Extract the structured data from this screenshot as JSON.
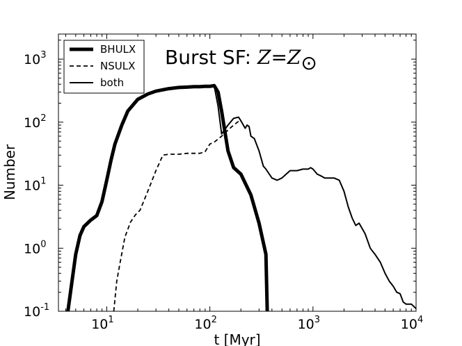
{
  "chart_data": {
    "type": "line",
    "title_prefix": "Burst SF: ",
    "title_math": "Z=Z",
    "title_math_symbol": "⊙",
    "xlabel": "t [Myr]",
    "ylabel": "Number",
    "xscale": "log",
    "yscale": "log",
    "xlim": [
      3.4,
      10000
    ],
    "ylim": [
      0.1,
      2500
    ],
    "grid": false,
    "legend_placement": "top-left",
    "x_ticks": [
      {
        "value": 10,
        "base": "10",
        "exp": "1"
      },
      {
        "value": 100,
        "base": "10",
        "exp": "2"
      },
      {
        "value": 1000,
        "base": "10",
        "exp": "3"
      },
      {
        "value": 10000,
        "base": "10",
        "exp": "4"
      }
    ],
    "y_ticks": [
      {
        "value": 0.1,
        "base": "10",
        "exp": "-1"
      },
      {
        "value": 1,
        "base": "10",
        "exp": "0"
      },
      {
        "value": 10,
        "base": "10",
        "exp": "1"
      },
      {
        "value": 100,
        "base": "10",
        "exp": "2"
      },
      {
        "value": 1000,
        "base": "10",
        "exp": "3"
      }
    ],
    "series": [
      {
        "name": "BHULX",
        "style": "thick-solid",
        "color": "#000000",
        "x": [
          4.2,
          4.6,
          5.0,
          5.5,
          6.0,
          7.0,
          8.0,
          9.0,
          10,
          11,
          12,
          14,
          16,
          20,
          25,
          30,
          40,
          50,
          60,
          70,
          80,
          90,
          100,
          110,
          120,
          130,
          140,
          150,
          170,
          200,
          250,
          300,
          350,
          360
        ],
        "y": [
          0.1,
          0.3,
          0.8,
          1.6,
          2.2,
          2.8,
          3.3,
          5.5,
          12,
          25,
          45,
          90,
          150,
          230,
          280,
          310,
          340,
          355,
          360,
          365,
          365,
          370,
          370,
          380,
          300,
          150,
          70,
          35,
          19,
          15,
          7,
          2.5,
          0.8,
          0.1
        ]
      },
      {
        "name": "NSULX",
        "style": "dashed",
        "color": "#000000",
        "x": [
          11.7,
          12.5,
          13.5,
          15,
          17,
          19,
          21,
          25,
          30,
          35,
          40,
          50,
          60,
          70,
          80,
          90,
          100,
          110,
          130,
          150,
          170,
          200
        ],
        "y": [
          0.1,
          0.3,
          0.6,
          1.5,
          2.6,
          3.4,
          4,
          8,
          17,
          30,
          31,
          31,
          32,
          32,
          32,
          34,
          45,
          48,
          60,
          75,
          90,
          110
        ]
      },
      {
        "name": "both",
        "style": "thin-solid",
        "color": "#000000",
        "x": [
          100,
          110,
          120,
          130,
          150,
          170,
          190,
          200,
          220,
          230,
          240,
          250,
          270,
          300,
          330,
          350,
          400,
          450,
          500,
          550,
          600,
          700,
          800,
          900,
          950,
          1000,
          1100,
          1200,
          1300,
          1400,
          1600,
          1800,
          2000,
          2200,
          2400,
          2600,
          2800,
          3200,
          3600,
          4000,
          4500,
          5000,
          5500,
          6000,
          6500,
          7000,
          7500,
          8000,
          9000,
          10000
        ],
        "y": [
          370,
          380,
          180,
          65,
          90,
          115,
          120,
          105,
          80,
          90,
          85,
          60,
          55,
          35,
          20,
          18,
          13,
          12,
          13,
          15,
          17,
          17,
          18,
          18,
          19,
          18,
          15,
          14,
          13,
          13,
          13,
          12,
          8,
          4.5,
          3,
          2.3,
          2.5,
          1.7,
          1.0,
          0.8,
          0.6,
          0.4,
          0.3,
          0.25,
          0.2,
          0.19,
          0.14,
          0.13,
          0.13,
          0.11
        ]
      }
    ]
  }
}
